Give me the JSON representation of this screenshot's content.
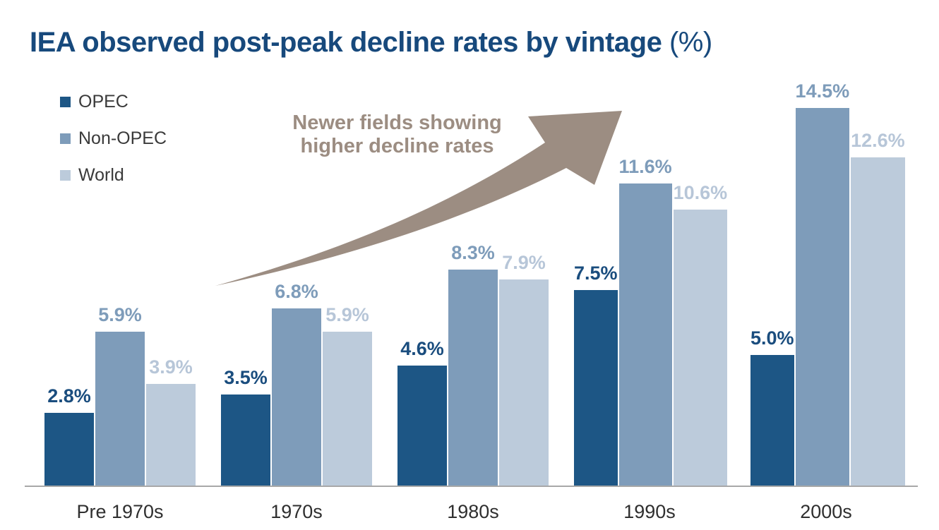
{
  "title": {
    "main": "IEA observed post-peak decline rates by vintage",
    "suffix": " (%)",
    "color": "#17497c"
  },
  "legend": {
    "position": "top-left",
    "items": [
      {
        "label": "OPEC",
        "color": "#1d5685"
      },
      {
        "label": "Non-OPEC",
        "color": "#7e9cba"
      },
      {
        "label": "World",
        "color": "#bccbdb"
      }
    ]
  },
  "annotation": {
    "line1": "Newer fields showing",
    "line2": "higher decline rates",
    "text_color": "#9c8d82",
    "arrow_color": "#9c8d82"
  },
  "chart_data": {
    "type": "bar",
    "title": "IEA observed post-peak decline rates by vintage (%)",
    "categories": [
      "Pre 1970s",
      "1970s",
      "1980s",
      "1990s",
      "2000s"
    ],
    "series": [
      {
        "name": "OPEC",
        "color": "#1d5685",
        "label_color": "#1a4d7e",
        "values": [
          2.8,
          3.5,
          4.6,
          7.5,
          5.0
        ]
      },
      {
        "name": "Non-OPEC",
        "color": "#7e9cba",
        "label_color": "#7e9cba",
        "values": [
          5.9,
          6.8,
          8.3,
          11.6,
          14.5
        ]
      },
      {
        "name": "World",
        "color": "#bccbdb",
        "label_color": "#b7c6d8",
        "values": [
          3.9,
          5.9,
          7.9,
          10.6,
          12.6
        ]
      }
    ],
    "value_suffix": "%",
    "ylim": [
      0,
      15.5
    ],
    "grid": false,
    "legend_position": "top-left",
    "annotation": "Newer fields showing higher decline rates"
  }
}
